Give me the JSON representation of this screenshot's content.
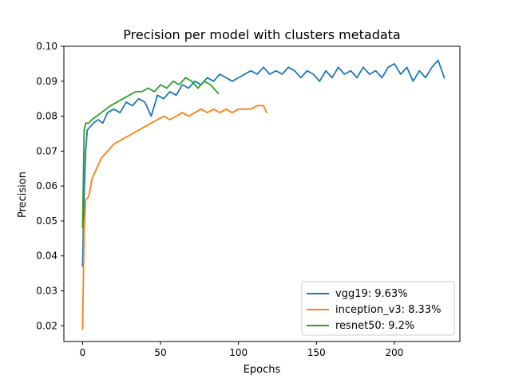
{
  "chart_data": {
    "type": "line",
    "title": "Precision per model with clusters metadata",
    "xlabel": "Epochs",
    "ylabel": "Precision",
    "xlim": [
      -12,
      242
    ],
    "ylim": [
      0.0155,
      0.1
    ],
    "xticks": [
      0,
      50,
      100,
      150,
      200
    ],
    "yticks": [
      0.02,
      0.03,
      0.04,
      0.05,
      0.06,
      0.07,
      0.08,
      0.09,
      0.1
    ],
    "ytick_labels": [
      "0.02",
      "0.03",
      "0.04",
      "0.05",
      "0.06",
      "0.07",
      "0.08",
      "0.09",
      "0.10"
    ],
    "xtick_labels": [
      "0",
      "50",
      "100",
      "150",
      "200"
    ],
    "grid": false,
    "legend_position": "bottom-right",
    "series": [
      {
        "name": "vgg19: 9.63%",
        "color": "#1f77b4",
        "points": [
          [
            0,
            0.037
          ],
          [
            1,
            0.058
          ],
          [
            2,
            0.07
          ],
          [
            3,
            0.076
          ],
          [
            5,
            0.077
          ],
          [
            7,
            0.078
          ],
          [
            10,
            0.079
          ],
          [
            13,
            0.078
          ],
          [
            16,
            0.081
          ],
          [
            20,
            0.082
          ],
          [
            24,
            0.081
          ],
          [
            28,
            0.084
          ],
          [
            32,
            0.083
          ],
          [
            36,
            0.085
          ],
          [
            40,
            0.084
          ],
          [
            44,
            0.08
          ],
          [
            48,
            0.086
          ],
          [
            52,
            0.085
          ],
          [
            56,
            0.087
          ],
          [
            60,
            0.086
          ],
          [
            64,
            0.089
          ],
          [
            68,
            0.088
          ],
          [
            72,
            0.09
          ],
          [
            76,
            0.089
          ],
          [
            80,
            0.091
          ],
          [
            84,
            0.09
          ],
          [
            88,
            0.092
          ],
          [
            92,
            0.091
          ],
          [
            96,
            0.09
          ],
          [
            100,
            0.091
          ],
          [
            104,
            0.092
          ],
          [
            108,
            0.093
          ],
          [
            112,
            0.092
          ],
          [
            116,
            0.094
          ],
          [
            120,
            0.092
          ],
          [
            124,
            0.093
          ],
          [
            128,
            0.092
          ],
          [
            132,
            0.094
          ],
          [
            136,
            0.093
          ],
          [
            140,
            0.091
          ],
          [
            144,
            0.093
          ],
          [
            148,
            0.092
          ],
          [
            152,
            0.09
          ],
          [
            156,
            0.093
          ],
          [
            160,
            0.091
          ],
          [
            164,
            0.094
          ],
          [
            168,
            0.092
          ],
          [
            172,
            0.093
          ],
          [
            176,
            0.091
          ],
          [
            180,
            0.094
          ],
          [
            184,
            0.092
          ],
          [
            188,
            0.093
          ],
          [
            192,
            0.091
          ],
          [
            196,
            0.094
          ],
          [
            200,
            0.095
          ],
          [
            204,
            0.092
          ],
          [
            208,
            0.094
          ],
          [
            212,
            0.09
          ],
          [
            216,
            0.093
          ],
          [
            220,
            0.091
          ],
          [
            224,
            0.094
          ],
          [
            228,
            0.096
          ],
          [
            232,
            0.091
          ]
        ]
      },
      {
        "name": "inception_v3: 8.33%",
        "color": "#ff7f0e",
        "points": [
          [
            0,
            0.019
          ],
          [
            1,
            0.048
          ],
          [
            2,
            0.056
          ],
          [
            4,
            0.057
          ],
          [
            6,
            0.062
          ],
          [
            9,
            0.065
          ],
          [
            12,
            0.068
          ],
          [
            16,
            0.07
          ],
          [
            20,
            0.072
          ],
          [
            24,
            0.073
          ],
          [
            28,
            0.074
          ],
          [
            32,
            0.075
          ],
          [
            36,
            0.076
          ],
          [
            40,
            0.077
          ],
          [
            44,
            0.078
          ],
          [
            48,
            0.079
          ],
          [
            52,
            0.08
          ],
          [
            56,
            0.079
          ],
          [
            60,
            0.08
          ],
          [
            64,
            0.081
          ],
          [
            68,
            0.08
          ],
          [
            72,
            0.081
          ],
          [
            76,
            0.082
          ],
          [
            80,
            0.081
          ],
          [
            84,
            0.082
          ],
          [
            88,
            0.081
          ],
          [
            92,
            0.082
          ],
          [
            96,
            0.081
          ],
          [
            100,
            0.082
          ],
          [
            104,
            0.082
          ],
          [
            108,
            0.082
          ],
          [
            112,
            0.083
          ],
          [
            116,
            0.083
          ],
          [
            118,
            0.081
          ]
        ]
      },
      {
        "name": "resnet50: 9.2%",
        "color": "#2ca02c",
        "points": [
          [
            0,
            0.048
          ],
          [
            1,
            0.076
          ],
          [
            2,
            0.078
          ],
          [
            4,
            0.078
          ],
          [
            6,
            0.079
          ],
          [
            9,
            0.08
          ],
          [
            12,
            0.081
          ],
          [
            15,
            0.082
          ],
          [
            18,
            0.083
          ],
          [
            22,
            0.084
          ],
          [
            26,
            0.085
          ],
          [
            30,
            0.086
          ],
          [
            34,
            0.087
          ],
          [
            38,
            0.087
          ],
          [
            42,
            0.088
          ],
          [
            46,
            0.087
          ],
          [
            50,
            0.089
          ],
          [
            54,
            0.088
          ],
          [
            58,
            0.09
          ],
          [
            62,
            0.089
          ],
          [
            66,
            0.091
          ],
          [
            70,
            0.09
          ],
          [
            74,
            0.088
          ],
          [
            78,
            0.09
          ],
          [
            82,
            0.089
          ],
          [
            86,
            0.087
          ],
          [
            87,
            0.0865
          ]
        ]
      }
    ]
  }
}
